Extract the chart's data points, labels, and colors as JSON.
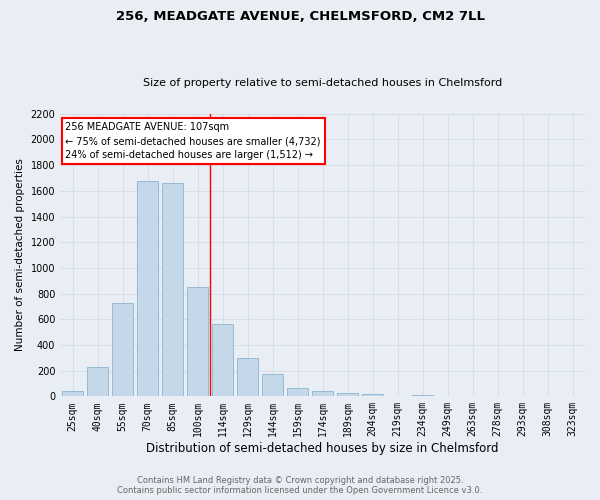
{
  "title": "256, MEADGATE AVENUE, CHELMSFORD, CM2 7LL",
  "subtitle": "Size of property relative to semi-detached houses in Chelmsford",
  "xlabel": "Distribution of semi-detached houses by size in Chelmsford",
  "ylabel": "Number of semi-detached properties",
  "categories": [
    "25sqm",
    "40sqm",
    "55sqm",
    "70sqm",
    "85sqm",
    "100sqm",
    "114sqm",
    "129sqm",
    "144sqm",
    "159sqm",
    "174sqm",
    "189sqm",
    "204sqm",
    "219sqm",
    "234sqm",
    "249sqm",
    "263sqm",
    "278sqm",
    "293sqm",
    "308sqm",
    "323sqm"
  ],
  "values": [
    45,
    225,
    730,
    1675,
    1660,
    850,
    560,
    295,
    175,
    65,
    40,
    25,
    20,
    0,
    10,
    0,
    0,
    0,
    0,
    0,
    0
  ],
  "bar_color": "#c5d8ea",
  "bar_edge_color": "#8ab4d0",
  "grid_color": "#d0d8e0",
  "vline_x": 5.5,
  "vline_color": "red",
  "annotation_text": "256 MEADGATE AVENUE: 107sqm\n← 75% of semi-detached houses are smaller (4,732)\n24% of semi-detached houses are larger (1,512) →",
  "annotation_box_color": "white",
  "annotation_box_edge": "red",
  "ylim": [
    0,
    2200
  ],
  "yticks": [
    0,
    200,
    400,
    600,
    800,
    1000,
    1200,
    1400,
    1600,
    1800,
    2000,
    2200
  ],
  "footer_line1": "Contains HM Land Registry data © Crown copyright and database right 2025.",
  "footer_line2": "Contains public sector information licensed under the Open Government Licence v3.0.",
  "bg_color": "#e8eef4",
  "title_fontsize": 9.5,
  "subtitle_fontsize": 8,
  "ylabel_fontsize": 7.5,
  "xlabel_fontsize": 8.5,
  "tick_fontsize": 7,
  "footer_fontsize": 6
}
